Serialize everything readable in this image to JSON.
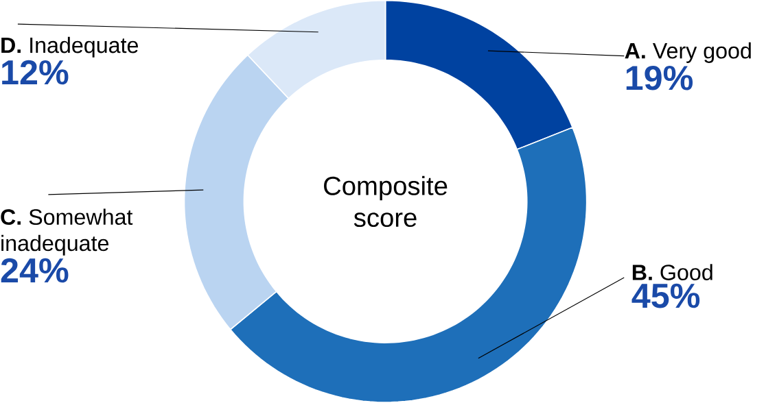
{
  "chart_data": {
    "type": "donut",
    "title": "Composite score",
    "categories": [
      "**A.** Very good",
      "**B.** Good",
      "**C.** Somewhat inadequate",
      "**D.** Inadequate"
    ],
    "values": [
      19,
      45,
      24,
      12
    ],
    "value_labels": [
      "19%",
      "45%",
      "24%",
      "12%"
    ],
    "colors": [
      "#0042a0",
      "#1e6fb9",
      "#bad4f1",
      "#dbe8f8"
    ]
  }
}
